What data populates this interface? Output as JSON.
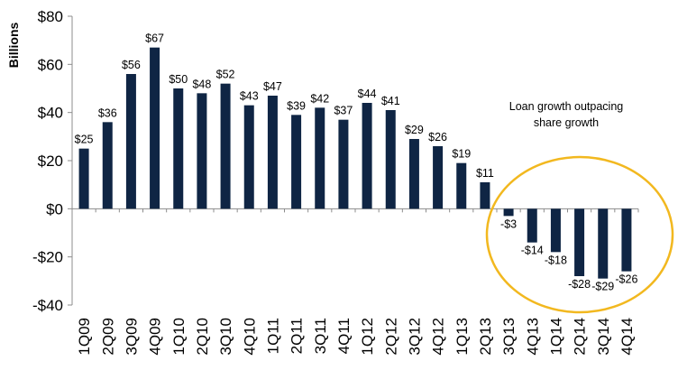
{
  "chart_data": {
    "type": "bar",
    "ylabel": "Billions",
    "ylim": [
      -40,
      80
    ],
    "yticks": [
      80,
      60,
      40,
      20,
      0,
      -20,
      -40
    ],
    "ytick_labels": [
      "$80",
      "$60",
      "$40",
      "$20",
      "$0",
      "-$20",
      "-$40"
    ],
    "categories": [
      "1Q09",
      "2Q09",
      "3Q09",
      "4Q09",
      "1Q10",
      "2Q10",
      "3Q10",
      "4Q10",
      "1Q11",
      "2Q11",
      "3Q11",
      "4Q11",
      "1Q12",
      "2Q12",
      "3Q12",
      "4Q12",
      "1Q13",
      "2Q13",
      "3Q13",
      "4Q13",
      "1Q14",
      "2Q14",
      "3Q14",
      "4Q14"
    ],
    "values": [
      25,
      36,
      56,
      67,
      50,
      48,
      52,
      43,
      47,
      39,
      42,
      37,
      44,
      41,
      29,
      26,
      19,
      11,
      -3,
      -14,
      -18,
      -28,
      -29,
      -26
    ],
    "data_labels": [
      "$25",
      "$36",
      "$56",
      "$67",
      "$50",
      "$48",
      "$52",
      "$43",
      "$47",
      "$39",
      "$42",
      "$37",
      "$44",
      "$41",
      "$29",
      "$26",
      "$19",
      "$11",
      "-$3",
      "-$14",
      "-$18",
      "-$28",
      "-$29",
      "-$26"
    ],
    "annotation": {
      "line1": "Loan growth outpacing",
      "line2": "share growth"
    },
    "grid": false,
    "legend": "none",
    "colors": {
      "bar": "#0f2544",
      "axis": "#8c8c8c",
      "highlight_circle": "#f2b81f"
    }
  }
}
